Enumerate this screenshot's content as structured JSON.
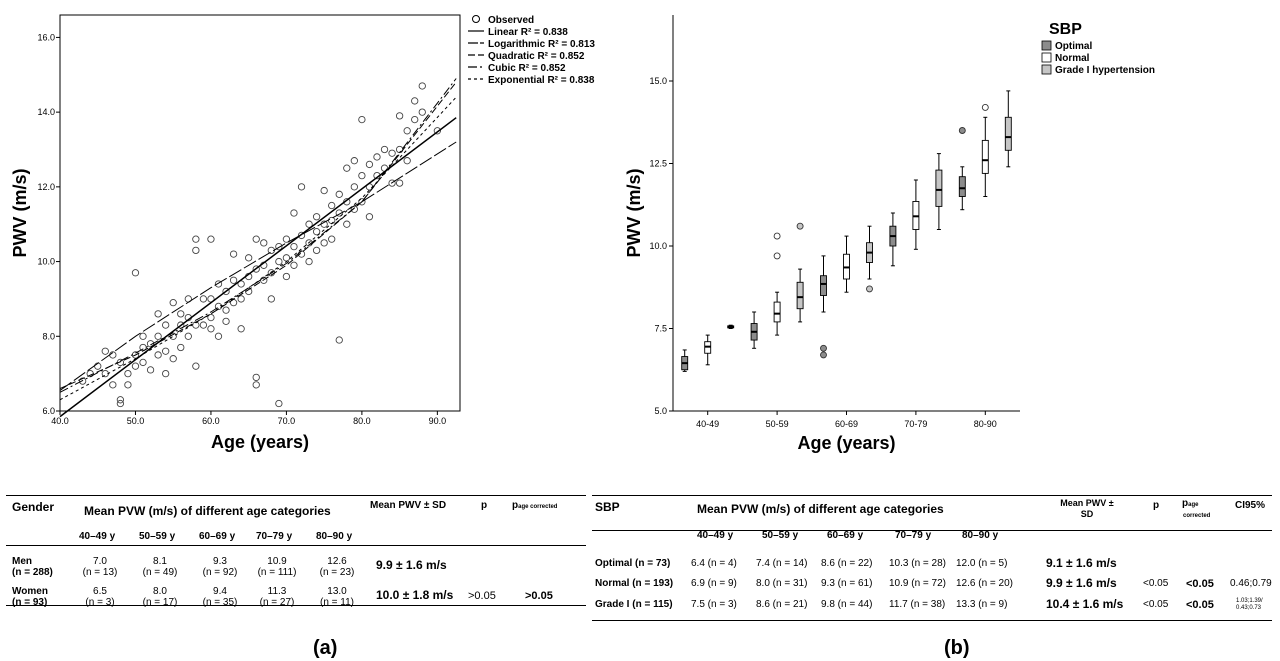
{
  "chart_data": [
    {
      "type": "scatter",
      "panel": "a",
      "xlabel": "Age (years)",
      "ylabel": "PWV (m/s)",
      "xlim": [
        40,
        93
      ],
      "ylim": [
        6,
        16.6
      ],
      "x_ticks": [
        "40.0",
        "50.0",
        "60.0",
        "70.0",
        "80.0",
        "90.0"
      ],
      "y_ticks": [
        "6.0",
        "8.0",
        "10.0",
        "12.0",
        "14.0",
        "16.0"
      ],
      "legend": {
        "placement": "top-right",
        "entries": [
          "Observed",
          "Linear R² = 0.838",
          "Logarithmic R² = 0.813",
          "Quadratic R² = 0.852",
          "Cubic R² = 0.852",
          "Exponential R² = 0.838"
        ]
      },
      "fits": [
        {
          "name": "Linear R² = 0.838",
          "points": [
            [
              40,
              5.85
            ],
            [
              92.5,
              13.85
            ]
          ]
        },
        {
          "name": "Logarithmic R² = 0.813",
          "points": [
            [
              40,
              6.55
            ],
            [
              50,
              8.0
            ],
            [
              60,
              9.3
            ],
            [
              70,
              10.5
            ],
            [
              80,
              11.6
            ],
            [
              92.5,
              13.2
            ]
          ]
        },
        {
          "name": "Quadratic R² = 0.852",
          "points": [
            [
              40,
              6.6
            ],
            [
              50,
              7.5
            ],
            [
              60,
              8.6
            ],
            [
              70,
              9.9
            ],
            [
              80,
              11.6
            ],
            [
              92.5,
              14.8
            ]
          ]
        },
        {
          "name": "Cubic R² = 0.852",
          "points": [
            [
              40,
              6.5
            ],
            [
              50,
              7.55
            ],
            [
              60,
              8.65
            ],
            [
              70,
              9.95
            ],
            [
              80,
              11.6
            ],
            [
              92.5,
              14.9
            ]
          ]
        },
        {
          "name": "Exponential R² = 0.838",
          "points": [
            [
              40,
              6.3
            ],
            [
              50,
              7.4
            ],
            [
              60,
              8.6
            ],
            [
              70,
              10.0
            ],
            [
              80,
              11.7
            ],
            [
              92.5,
              14.4
            ]
          ]
        }
      ],
      "points": [
        [
          43,
          6.8
        ],
        [
          44,
          7.0
        ],
        [
          45,
          7.2
        ],
        [
          46,
          7.6
        ],
        [
          46,
          7.0
        ],
        [
          47,
          7.5
        ],
        [
          47,
          6.7
        ],
        [
          48,
          7.3
        ],
        [
          48,
          6.2
        ],
        [
          48,
          6.3
        ],
        [
          49,
          7.0
        ],
        [
          49,
          6.7
        ],
        [
          50,
          9.7
        ],
        [
          50,
          7.5
        ],
        [
          50,
          7.2
        ],
        [
          51,
          8.0
        ],
        [
          51,
          7.3
        ],
        [
          51,
          7.7
        ],
        [
          52,
          7.8
        ],
        [
          52,
          7.1
        ],
        [
          53,
          8.6
        ],
        [
          53,
          7.5
        ],
        [
          53,
          8.0
        ],
        [
          54,
          8.3
        ],
        [
          54,
          7.6
        ],
        [
          54,
          7.0
        ],
        [
          55,
          8.9
        ],
        [
          55,
          8.0
        ],
        [
          55,
          7.4
        ],
        [
          56,
          8.3
        ],
        [
          56,
          7.7
        ],
        [
          56,
          8.6
        ],
        [
          57,
          9.0
        ],
        [
          57,
          8.5
        ],
        [
          57,
          8.0
        ],
        [
          58,
          10.6
        ],
        [
          58,
          10.3
        ],
        [
          58,
          8.3
        ],
        [
          58,
          7.2
        ],
        [
          59,
          9.0
        ],
        [
          59,
          8.3
        ],
        [
          60,
          10.6
        ],
        [
          60,
          9.0
        ],
        [
          60,
          8.5
        ],
        [
          60,
          8.2
        ],
        [
          61,
          9.4
        ],
        [
          61,
          8.8
        ],
        [
          61,
          8.0
        ],
        [
          62,
          9.2
        ],
        [
          62,
          8.7
        ],
        [
          62,
          8.4
        ],
        [
          63,
          10.2
        ],
        [
          63,
          9.5
        ],
        [
          63,
          8.9
        ],
        [
          64,
          9.4
        ],
        [
          64,
          9.0
        ],
        [
          64,
          8.2
        ],
        [
          65,
          10.1
        ],
        [
          65,
          9.6
        ],
        [
          65,
          9.2
        ],
        [
          66,
          10.6
        ],
        [
          66,
          9.8
        ],
        [
          66,
          6.9
        ],
        [
          66,
          6.7
        ],
        [
          67,
          10.5
        ],
        [
          67,
          9.9
        ],
        [
          67,
          9.5
        ],
        [
          68,
          10.3
        ],
        [
          68,
          9.7
        ],
        [
          68,
          9.0
        ],
        [
          69,
          6.2
        ],
        [
          69,
          10.4
        ],
        [
          69,
          10.0
        ],
        [
          70,
          10.6
        ],
        [
          70,
          10.1
        ],
        [
          70,
          9.6
        ],
        [
          71,
          11.3
        ],
        [
          71,
          10.4
        ],
        [
          71,
          9.9
        ],
        [
          72,
          12.0
        ],
        [
          72,
          10.7
        ],
        [
          72,
          10.2
        ],
        [
          73,
          11.0
        ],
        [
          73,
          10.5
        ],
        [
          73,
          10.0
        ],
        [
          74,
          11.2
        ],
        [
          74,
          10.8
        ],
        [
          74,
          10.3
        ],
        [
          75,
          11.9
        ],
        [
          75,
          11.0
        ],
        [
          75,
          10.5
        ],
        [
          76,
          11.5
        ],
        [
          76,
          11.1
        ],
        [
          76,
          10.6
        ],
        [
          77,
          7.9
        ],
        [
          77,
          11.8
        ],
        [
          77,
          11.3
        ],
        [
          78,
          12.5
        ],
        [
          78,
          11.6
        ],
        [
          78,
          11.0
        ],
        [
          79,
          12.7
        ],
        [
          79,
          12.0
        ],
        [
          79,
          11.4
        ],
        [
          80,
          13.8
        ],
        [
          80,
          12.3
        ],
        [
          80,
          11.6
        ],
        [
          81,
          12.6
        ],
        [
          81,
          12.0
        ],
        [
          81,
          11.2
        ],
        [
          82,
          12.8
        ],
        [
          82,
          12.3
        ],
        [
          83,
          13.0
        ],
        [
          83,
          12.5
        ],
        [
          84,
          12.9
        ],
        [
          84,
          12.1
        ],
        [
          85,
          13.9
        ],
        [
          85,
          13.0
        ],
        [
          85,
          12.1
        ],
        [
          86,
          13.5
        ],
        [
          86,
          12.7
        ],
        [
          87,
          14.3
        ],
        [
          87,
          13.8
        ],
        [
          88,
          14.7
        ],
        [
          88,
          14.0
        ],
        [
          90,
          13.5
        ]
      ]
    },
    {
      "type": "box",
      "panel": "b",
      "xlabel": "Age (years)",
      "ylabel": "PWV (m/s)",
      "ylim": [
        5.0,
        17.0
      ],
      "y_ticks": [
        "5.0",
        "7.5",
        "10.0",
        "12.5",
        "15.0"
      ],
      "categories": [
        "40-49",
        "50-59",
        "60-69",
        "70-79",
        "80-90"
      ],
      "legend": {
        "title": "SBP",
        "placement": "top-right",
        "entries": [
          "Optimal",
          "Normal",
          "Grade I hypertension"
        ]
      },
      "colors": {
        "Optimal": "#8c8c8c",
        "Normal": "#ffffff",
        "Grade I hypertension": "#c6c6c6"
      },
      "boxes": [
        {
          "category": "40-49",
          "group": "Optimal",
          "min": 6.2,
          "q1": 6.25,
          "median": 6.45,
          "q3": 6.65,
          "max": 6.85,
          "outliers": []
        },
        {
          "category": "40-49",
          "group": "Normal",
          "min": 6.4,
          "q1": 6.75,
          "median": 6.95,
          "q3": 7.1,
          "max": 7.3,
          "outliers": []
        },
        {
          "category": "40-49",
          "group": "Grade I hypertension",
          "min": 7.5,
          "q1": 7.52,
          "median": 7.55,
          "q3": 7.58,
          "max": 7.6,
          "outliers": []
        },
        {
          "category": "50-59",
          "group": "Optimal",
          "min": 6.9,
          "q1": 7.15,
          "median": 7.4,
          "q3": 7.65,
          "max": 8.0,
          "outliers": []
        },
        {
          "category": "50-59",
          "group": "Normal",
          "min": 7.3,
          "q1": 7.7,
          "median": 7.95,
          "q3": 8.3,
          "max": 8.6,
          "outliers": [
            9.7,
            10.3
          ]
        },
        {
          "category": "50-59",
          "group": "Grade I hypertension",
          "min": 7.7,
          "q1": 8.1,
          "median": 8.45,
          "q3": 8.9,
          "max": 9.3,
          "outliers": [
            10.6
          ]
        },
        {
          "category": "60-69",
          "group": "Optimal",
          "min": 8.0,
          "q1": 8.5,
          "median": 8.85,
          "q3": 9.1,
          "max": 9.7,
          "outliers": [
            6.7,
            6.9
          ]
        },
        {
          "category": "60-69",
          "group": "Normal",
          "min": 8.6,
          "q1": 9.0,
          "median": 9.35,
          "q3": 9.75,
          "max": 10.3,
          "outliers": []
        },
        {
          "category": "60-69",
          "group": "Grade I hypertension",
          "min": 9.0,
          "q1": 9.5,
          "median": 9.8,
          "q3": 10.1,
          "max": 10.6,
          "outliers": [
            8.7
          ]
        },
        {
          "category": "70-79",
          "group": "Optimal",
          "min": 9.4,
          "q1": 10.0,
          "median": 10.3,
          "q3": 10.6,
          "max": 11.0,
          "outliers": []
        },
        {
          "category": "70-79",
          "group": "Normal",
          "min": 9.9,
          "q1": 10.5,
          "median": 10.9,
          "q3": 11.35,
          "max": 12.0,
          "outliers": []
        },
        {
          "category": "70-79",
          "group": "Grade I hypertension",
          "min": 10.5,
          "q1": 11.2,
          "median": 11.7,
          "q3": 12.3,
          "max": 12.8,
          "outliers": []
        },
        {
          "category": "80-90",
          "group": "Optimal",
          "min": 11.1,
          "q1": 11.5,
          "median": 11.75,
          "q3": 12.1,
          "max": 12.4,
          "outliers": [
            13.5
          ]
        },
        {
          "category": "80-90",
          "group": "Normal",
          "min": 11.5,
          "q1": 12.2,
          "median": 12.6,
          "q3": 13.2,
          "max": 13.9,
          "outliers": [
            14.2
          ]
        },
        {
          "category": "80-90",
          "group": "Grade I hypertension",
          "min": 12.4,
          "q1": 12.9,
          "median": 13.3,
          "q3": 13.9,
          "max": 14.7,
          "outliers": []
        }
      ]
    }
  ],
  "table_a": {
    "header": {
      "gender": "Gender",
      "span": "Mean PVW (m/s) of different age categories",
      "mean": "Mean PWV ± SD",
      "p": "p",
      "p_age_main": "p",
      "p_age_sub": "age corrected"
    },
    "age_cols": [
      "40–49 y",
      "50–59 y",
      "60–69 y",
      "70–79 y",
      "80–90 y"
    ],
    "rows": [
      {
        "label1": "Men",
        "label2": "(n = 288)",
        "cells": [
          {
            "v": "7.0",
            "n": "(n = 13)"
          },
          {
            "v": "8.1",
            "n": "(n = 49)"
          },
          {
            "v": "9.3",
            "n": "(n = 92)"
          },
          {
            "v": "10.9",
            "n": "(n = 111)"
          },
          {
            "v": "12.6",
            "n": "(n = 23)"
          }
        ],
        "mean": "9.9 ± 1.6 m/s",
        "p": "",
        "p_age": ""
      },
      {
        "label1": "Women",
        "label2": "(n = 93)",
        "cells": [
          {
            "v": "6.5",
            "n": "(n = 3)"
          },
          {
            "v": "8.0",
            "n": "(n = 17)"
          },
          {
            "v": "9.4",
            "n": "(n = 35)"
          },
          {
            "v": "11.3",
            "n": "(n = 27)"
          },
          {
            "v": "13.0",
            "n": "(n = 11)"
          }
        ],
        "mean": "10.0 ± 1.8 m/s",
        "p": ">0.05",
        "p_age": ">0.05"
      }
    ]
  },
  "table_b": {
    "header": {
      "sbp": "SBP",
      "span": "Mean PVW (m/s) of different age categories",
      "mean1": "Mean PWV ±",
      "mean2": "SD",
      "p": "p",
      "p_age_main": "p",
      "p_age_sub1": "age",
      "p_age_sub2": "corrected",
      "ci": "CI95%"
    },
    "age_cols": [
      "40–49 y",
      "50–59 y",
      "60–69 y",
      "70–79 y",
      "80–90 y"
    ],
    "rows": [
      {
        "label": "Optimal (n = 73)",
        "cells": [
          "6.4 (n = 4)",
          "7.4 (n = 14)",
          "8.6 (n = 22)",
          "10.3 (n = 28)",
          "12.0 (n = 5)"
        ],
        "mean": "9.1 ± 1.6 m/s",
        "p": "",
        "p_age": "",
        "ci": ""
      },
      {
        "label": "Normal (n = 193)",
        "cells": [
          "6.9 (n = 9)",
          "8.0 (n = 31)",
          "9.3 (n = 61)",
          "10.9 (n = 72)",
          "12.6 (n = 20)"
        ],
        "mean": "9.9 ± 1.6 m/s",
        "p": "<0.05",
        "p_age": "<0.05",
        "ci": "0.46;0.79"
      },
      {
        "label": "Grade I (n = 115)",
        "cells": [
          "7.5 (n = 3)",
          "8.6 (n = 21)",
          "9.8 (n = 44)",
          "11.7 (n = 38)",
          "13.3 (n = 9)"
        ],
        "mean": "10.4 ± 1.6 m/s",
        "p": "<0.05",
        "p_age": "<0.05",
        "ci": "1.03;1.39/ 0.43;0.73"
      }
    ]
  },
  "panel_labels": {
    "a": "(a)",
    "b": "(b)"
  }
}
